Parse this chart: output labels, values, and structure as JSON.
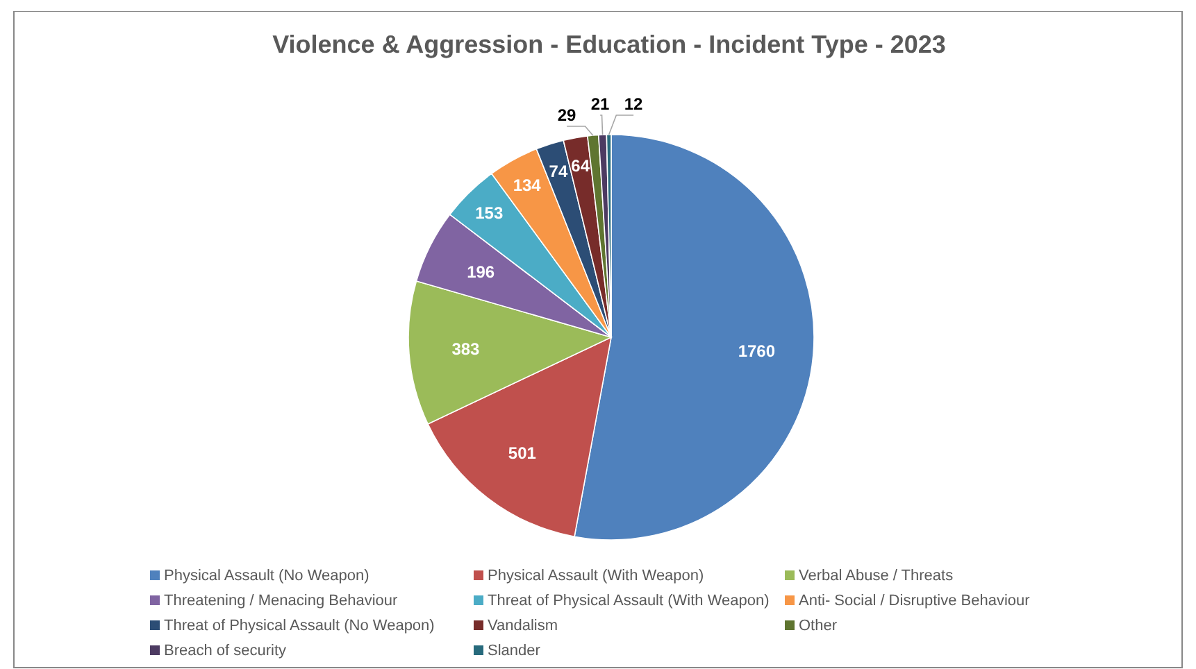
{
  "chart_data": {
    "type": "pie",
    "title": "Violence & Aggression - Education - Incident Type - 2023",
    "categories": [
      "Physical Assault (No Weapon)",
      "Physical Assault (With Weapon)",
      "Verbal Abuse / Threats",
      "Threatening / Menacing Behaviour",
      "Threat of Physical Assault (With Weapon)",
      "Anti- Social / Disruptive Behaviour",
      "Threat of Physical Assault (No Weapon)",
      "Vandalism",
      "Other",
      "Breach of security",
      "Slander"
    ],
    "values": [
      1760,
      501,
      383,
      196,
      153,
      134,
      74,
      64,
      29,
      21,
      12
    ],
    "colors": [
      "#4f81bd",
      "#c0504d",
      "#9bbb59",
      "#8064a2",
      "#4bacc6",
      "#f79646",
      "#2c4d75",
      "#772c2a",
      "#5f7530",
      "#4d3b62",
      "#276a7c"
    ],
    "data_labels": true,
    "legend": "bottom"
  }
}
